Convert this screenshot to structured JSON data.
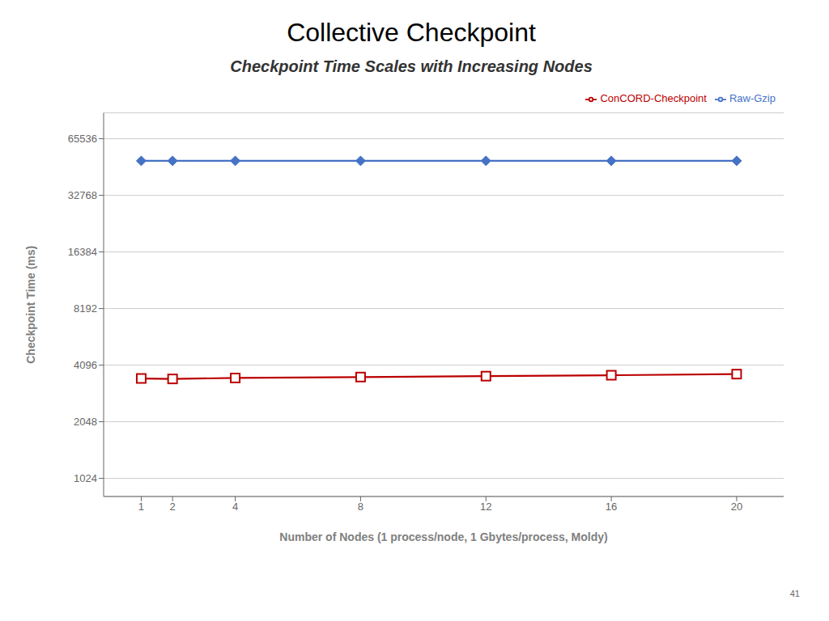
{
  "chart_data": {
    "type": "line",
    "title": "Collective Checkpoint",
    "subtitle": "Checkpoint Time Scales with Increasing Nodes",
    "x_label": "Number of Nodes (1 process/node, 1 Gbytes/process, Moldy)",
    "y_label": "Checkpoint Time (ms)",
    "x": [
      1,
      2,
      4,
      8,
      12,
      16,
      20
    ],
    "series": [
      {
        "name": "Raw-Gzip",
        "color": "#4472c4",
        "marker": "diamond",
        "values": [
          50000,
          50000,
          50000,
          50000,
          50000,
          50000,
          50000
        ]
      },
      {
        "name": "ConCORD-Checkpoint",
        "color": "#bb0000",
        "marker": "square",
        "values": [
          3480,
          3460,
          3500,
          3540,
          3580,
          3620,
          3670
        ]
      }
    ],
    "xlim": [
      -0.2,
      21.5
    ],
    "xticks": [
      1,
      2,
      4,
      8,
      12,
      16,
      20
    ],
    "ylim": [
      820,
      90000
    ],
    "yticks": [
      1024,
      2048,
      4096,
      8192,
      16384,
      32768,
      65536
    ],
    "log": "y",
    "grid": true,
    "legend": "upper right",
    "annotations": [
      "41"
    ]
  }
}
